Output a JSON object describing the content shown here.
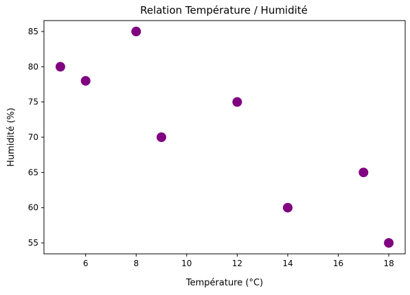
{
  "chart_data": {
    "type": "scatter",
    "title": "Relation Température / Humidité",
    "xlabel": "Température (°C)",
    "ylabel": "Humidité (%)",
    "x": [
      5,
      6,
      8,
      9,
      12,
      14,
      17,
      18
    ],
    "y": [
      80,
      78,
      85,
      70,
      75,
      60,
      65,
      55
    ],
    "xlim": [
      4.35,
      18.65
    ],
    "ylim": [
      53.45,
      86.55
    ],
    "xticks": [
      6,
      8,
      10,
      12,
      14,
      16,
      18
    ],
    "yticks": [
      55,
      60,
      65,
      70,
      75,
      80,
      85
    ],
    "marker_color": "#800080",
    "grid": false,
    "legend": "none"
  }
}
